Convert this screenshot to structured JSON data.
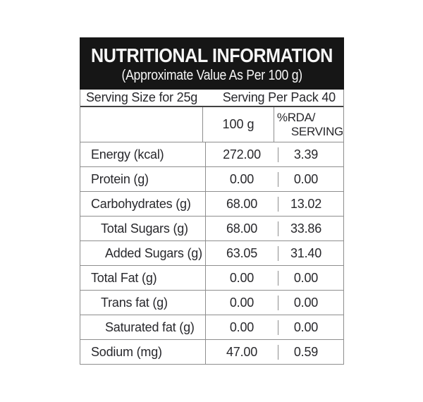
{
  "header": {
    "title": "NUTRITIONAL INFORMATION",
    "subtitle": "(Approximate Value As Per 100 g)"
  },
  "serving": {
    "size": "Serving Size for 25g",
    "per_pack": "Serving Per Pack 40"
  },
  "columns": {
    "per_100g": "100 g",
    "rda_line1": "%RDA/",
    "rda_line2": "SERVING"
  },
  "rows": [
    {
      "label": "Energy (kcal)",
      "indent": 0,
      "per_100g": "272.00",
      "rda_per_serving": "3.39"
    },
    {
      "label": "Protein (g)",
      "indent": 0,
      "per_100g": "0.00",
      "rda_per_serving": "0.00"
    },
    {
      "label": "Carbohydrates (g)",
      "indent": 0,
      "per_100g": "68.00",
      "rda_per_serving": "13.02"
    },
    {
      "label": "Total Sugars (g)",
      "indent": 1,
      "per_100g": "68.00",
      "rda_per_serving": "33.86"
    },
    {
      "label": "Added Sugars (g)",
      "indent": 2,
      "per_100g": "63.05",
      "rda_per_serving": "31.40"
    },
    {
      "label": "Total Fat (g)",
      "indent": 0,
      "per_100g": "0.00",
      "rda_per_serving": "0.00"
    },
    {
      "label": "Trans fat (g)",
      "indent": 1,
      "per_100g": "0.00",
      "rda_per_serving": "0.00"
    },
    {
      "label": "Saturated fat (g)",
      "indent": 2,
      "per_100g": "0.00",
      "rda_per_serving": "0.00"
    },
    {
      "label": "Sodium (mg)",
      "indent": 0,
      "per_100g": "47.00",
      "rda_per_serving": "0.59"
    }
  ],
  "colors": {
    "header_background": "#161616",
    "header_text": "#f7f7f7",
    "body_text": "#28282c",
    "border_gray": "#8e8e8e",
    "divider_dark": "#424242",
    "page_background": "#ffffff"
  }
}
